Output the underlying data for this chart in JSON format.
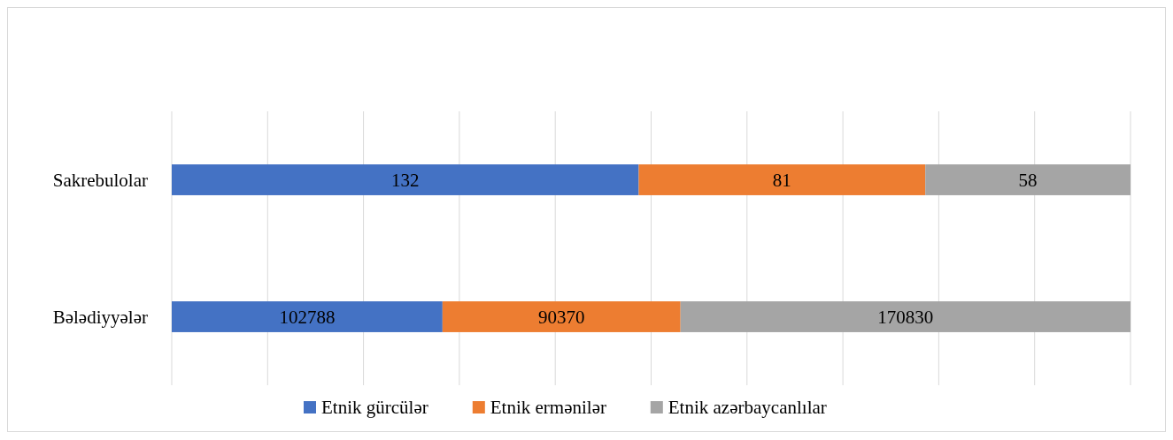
{
  "chart_data": [
    {
      "type": "bar",
      "orientation": "horizontal",
      "stacked": true,
      "data_labels": true,
      "categories": [
        "Sakrebulolar"
      ],
      "series": [
        {
          "color": "#4472c4",
          "values": [
            132
          ]
        },
        {
          "color": "#ed7d31",
          "values": [
            81
          ]
        },
        {
          "color": "#a5a5a5",
          "values": [
            58
          ]
        }
      ],
      "grid": "x",
      "legend": false
    },
    {
      "type": "bar",
      "orientation": "horizontal",
      "stacked": true,
      "data_labels": true,
      "categories": [
        "Bələdiyyələr"
      ],
      "series": [
        {
          "name": "Etnik gürcülər",
          "color": "#4472c4",
          "values": [
            102788
          ]
        },
        {
          "name": "Etnik ermənilər",
          "color": "#ed7d31",
          "values": [
            90370
          ]
        },
        {
          "name": "Etnik azərbaycanlılar",
          "color": "#a5a5a5",
          "values": [
            170830
          ]
        }
      ],
      "grid": "x",
      "legend": "bottom"
    }
  ]
}
